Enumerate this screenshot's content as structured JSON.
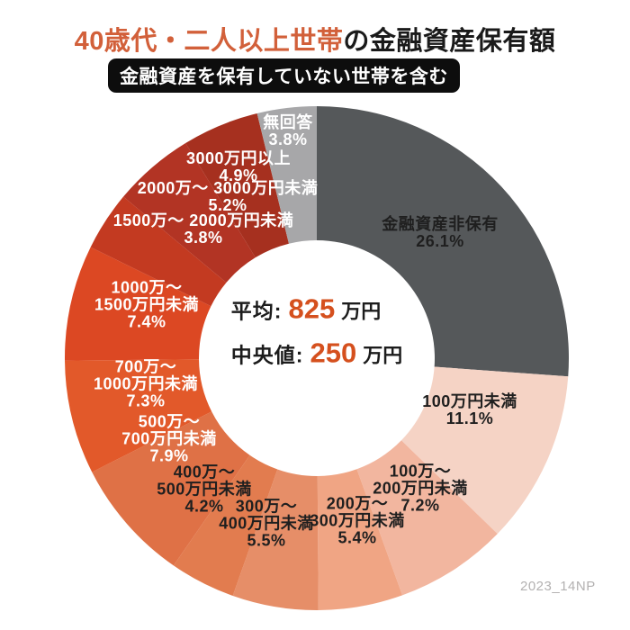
{
  "title": {
    "highlight": "40歳代・二人以上世帯",
    "rest": "の金融資産保有額"
  },
  "subtitle": "金融資産を保有していない世帯を含む",
  "watermark": "2023_14NP",
  "colors": {
    "background": "#FFFFFF",
    "title_accent": "#D2603A",
    "value_accent": "#D5501E",
    "badge_bg": "#0D0D0D",
    "badge_text": "#FFFFFF",
    "watermark_text": "#B3B1B1"
  },
  "chart_data": {
    "type": "pie",
    "subtype": "donut",
    "title": "40歳代・二人以上世帯の金融資産保有額",
    "note": "金融資産を保有していない世帯を含む",
    "unit": "%",
    "order": "clockwise-from-top",
    "segments": [
      {
        "label": "金融資産非保有",
        "lines": [
          "金融資産非保有"
        ],
        "value": 26.1,
        "color": "#55585A",
        "text_color": "#1F1F1F"
      },
      {
        "label": "100万円未満",
        "lines": [
          "100万円未満"
        ],
        "value": 11.1,
        "color": "#F5D3C5",
        "text_color": "#1F1F1F"
      },
      {
        "label": "100万〜200万円未満",
        "lines": [
          "100万〜",
          "200万円未満"
        ],
        "value": 7.2,
        "color": "#F2B69F",
        "text_color": "#1F1F1F"
      },
      {
        "label": "200万〜300万円未満",
        "lines": [
          "200万〜",
          "300万円未満"
        ],
        "value": 5.4,
        "color": "#F0A584",
        "text_color": "#1F1F1F"
      },
      {
        "label": "300万〜400万円未満",
        "lines": [
          "300万〜",
          "400万円未満"
        ],
        "value": 5.5,
        "color": "#E68E68",
        "text_color": "#1F1F1F"
      },
      {
        "label": "400万〜500万円未満",
        "lines": [
          "400万〜",
          "500万円未満"
        ],
        "value": 4.2,
        "color": "#E27C4F",
        "text_color": "#1F1F1F"
      },
      {
        "label": "500万〜700万円未満",
        "lines": [
          "500万〜",
          "700万円未満"
        ],
        "value": 7.9,
        "color": "#DF7146",
        "text_color": "#FFFFFF"
      },
      {
        "label": "700万〜1000万円未満",
        "lines": [
          "700万〜",
          "1000万円未満"
        ],
        "value": 7.3,
        "color": "#E2592A",
        "text_color": "#FFFFFF"
      },
      {
        "label": "1000万〜1500万円未満",
        "lines": [
          "1000万〜",
          "1500万円未満"
        ],
        "value": 7.4,
        "color": "#DC4823",
        "text_color": "#FFFFFF"
      },
      {
        "label": "1500万〜2000万円未満",
        "lines": [
          "1500万〜 2000万円未満"
        ],
        "value": 3.8,
        "color": "#C33A21",
        "text_color": "#FFFFFF"
      },
      {
        "label": "2000万〜3000万円未満",
        "lines": [
          "2000万〜 3000万円未満"
        ],
        "value": 5.2,
        "color": "#B23424",
        "text_color": "#FFFFFF"
      },
      {
        "label": "3000万円以上",
        "lines": [
          "3000万円以上"
        ],
        "value": 4.9,
        "color": "#A6301F",
        "text_color": "#FFFFFF"
      },
      {
        "label": "無回答",
        "lines": [
          "無回答"
        ],
        "value": 3.8,
        "color": "#A7A7A9",
        "text_color": "#FFFFFF"
      }
    ],
    "center_stats": {
      "average_label": "平均:",
      "average_value": "825",
      "average_unit": "万円",
      "median_label": "中央値:",
      "median_value": "250",
      "median_unit": "万円"
    }
  }
}
